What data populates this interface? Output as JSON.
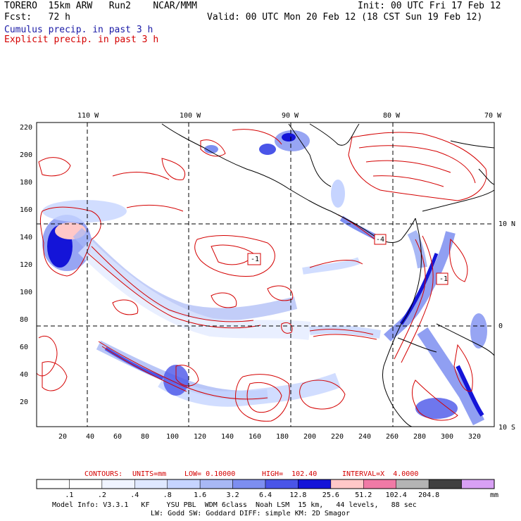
{
  "header": {
    "left1": "TORERO  15km ARW   Run2    NCAR/MMM",
    "right1": "Init: 00 UTC Fri 17 Feb 12",
    "left2": "Fcst:   72 h",
    "right2": "Valid: 00 UTC Mon 20 Feb 12 (18 CST Sun 19 Feb 12)",
    "field1": "Cumulus precip. in past 3 h",
    "field2": "Explicit precip. in past 3 h"
  },
  "map": {
    "lon_labels": [
      "110 W",
      "100 W",
      "90 W",
      "80 W",
      "70 W"
    ],
    "lat_labels": [
      "10 N",
      "0",
      "10 S"
    ],
    "y_ticks": [
      "220",
      "200",
      "180",
      "160",
      "140",
      "120",
      "100",
      "80",
      "60",
      "40",
      "20"
    ],
    "x_ticks": [
      "20",
      "40",
      "60",
      "80",
      "100",
      "120",
      "140",
      "160",
      "180",
      "200",
      "220",
      "240",
      "260",
      "280",
      "300",
      "320"
    ],
    "contour_marks": [
      "-1",
      "-4",
      "-1"
    ]
  },
  "contour_info": {
    "label": "CONTOURS:",
    "units": "UNITS=mm",
    "low": "LOW= 0.10000",
    "high": "HIGH=  102.40",
    "interval": "INTERVAL=X  4.0000"
  },
  "colorbar": {
    "labels": [
      ".1",
      ".2",
      ".4",
      ".8",
      "1.6",
      "3.2",
      "6.4",
      "12.8",
      "25.6",
      "51.2",
      "102.4",
      "204.8"
    ],
    "unit": "mm",
    "colors": [
      "#ffffff",
      "#ffffff",
      "#f0f4ff",
      "#dfe8ff",
      "#c6d4ff",
      "#a8b8f5",
      "#7d8ef0",
      "#4a55e8",
      "#1414d8",
      "#ffc8c8",
      "#f07aa6",
      "#b4b4b4",
      "#404040",
      "#d8a0f5"
    ]
  },
  "footer": {
    "line1": "Model Info: V3.3.1   KF    YSU PBL  WDM 6class  Noah LSM  15 km,   44 levels,   88 sec",
    "line2": "LW: Godd SW: Goddard DIFF: simple KM: 2D Smagor"
  }
}
